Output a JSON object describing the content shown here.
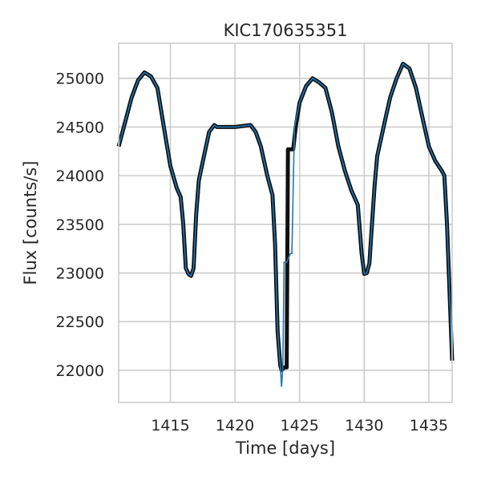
{
  "chart_data": {
    "type": "line",
    "title": "KIC170635351",
    "xlabel": "Time [days]",
    "ylabel": "Flux [counts/s]",
    "xlim": [
      1411,
      1436.8
    ],
    "ylim": [
      21670,
      25360
    ],
    "xticks": [
      1415,
      1420,
      1425,
      1430,
      1435
    ],
    "yticks": [
      22000,
      22500,
      23000,
      23500,
      24000,
      24500,
      25000
    ],
    "grid": true,
    "legend": "none",
    "colors": {
      "raw": "#111111",
      "model": "#1f77b4",
      "grid": "#cccccc",
      "frame": "#cccccc"
    },
    "series": [
      {
        "role": "raw",
        "x": [
          1411.0,
          1411.5,
          1412.0,
          1412.5,
          1413.0,
          1413.5,
          1414.0,
          1414.5,
          1415.0,
          1415.5,
          1415.8,
          1416.0,
          1416.2,
          1416.4,
          1416.6,
          1416.8,
          1417.0,
          1417.2,
          1417.6,
          1418.0,
          1418.4,
          1418.6,
          1420.0,
          1421.2,
          1421.6,
          1422.0,
          1422.5,
          1422.9,
          1423.1,
          1423.3,
          1423.5,
          1423.6,
          1423.8,
          1424.0,
          1424.1,
          1424.3,
          1424.5,
          1424.7,
          1425.0,
          1425.5,
          1426.0,
          1426.5,
          1427.0,
          1427.5,
          1428.0,
          1428.5,
          1429.0,
          1429.5,
          1429.8,
          1430.0,
          1430.2,
          1430.4,
          1430.6,
          1430.8,
          1431.0,
          1431.5,
          1432.0,
          1432.5,
          1433.0,
          1433.5,
          1434.0,
          1434.5,
          1435.0,
          1435.5,
          1436.0,
          1436.2,
          1436.4,
          1436.6,
          1436.8
        ],
        "y": [
          24300,
          24550,
          24800,
          24980,
          25060,
          25020,
          24900,
          24500,
          24100,
          23870,
          23780,
          23500,
          23050,
          22990,
          22970,
          23050,
          23600,
          23950,
          24200,
          24450,
          24520,
          24500,
          24500,
          24520,
          24450,
          24300,
          24000,
          23800,
          23300,
          22400,
          22050,
          22000,
          22030,
          22030,
          24270,
          24270,
          24270,
          24500,
          24750,
          24920,
          25000,
          24960,
          24900,
          24650,
          24300,
          24050,
          23850,
          23700,
          23200,
          22990,
          23000,
          23100,
          23500,
          23900,
          24200,
          24500,
          24800,
          25000,
          25150,
          25100,
          24900,
          24600,
          24300,
          24150,
          24050,
          24000,
          23500,
          22800,
          22100
        ]
      },
      {
        "role": "model",
        "x": [
          1411.0,
          1411.5,
          1412.0,
          1412.5,
          1413.0,
          1413.5,
          1414.0,
          1414.5,
          1415.0,
          1415.5,
          1415.8,
          1416.0,
          1416.2,
          1416.4,
          1416.6,
          1416.8,
          1417.0,
          1417.2,
          1417.6,
          1418.0,
          1418.4,
          1418.6,
          1420.0,
          1421.2,
          1421.6,
          1422.0,
          1422.5,
          1422.9,
          1423.1,
          1423.3,
          1423.5,
          1423.6,
          1423.7,
          1423.8,
          1423.9,
          1424.0,
          1424.3,
          1424.4,
          1424.6,
          1425.0,
          1425.5,
          1426.0,
          1426.5,
          1427.0,
          1427.5,
          1428.0,
          1428.5,
          1429.0,
          1429.5,
          1429.8,
          1430.0,
          1430.2,
          1430.4,
          1430.6,
          1430.8,
          1431.0,
          1431.5,
          1432.0,
          1432.5,
          1433.0,
          1433.5,
          1434.0,
          1434.5,
          1435.0,
          1435.5,
          1436.0,
          1436.2,
          1436.4,
          1436.6,
          1436.8
        ],
        "y": [
          24300,
          24550,
          24800,
          24980,
          25060,
          25020,
          24900,
          24500,
          24100,
          23870,
          23780,
          23500,
          23050,
          22990,
          22970,
          23050,
          23600,
          23950,
          24200,
          24450,
          24520,
          24500,
          24500,
          24520,
          24450,
          24300,
          24000,
          23800,
          23300,
          22400,
          22050,
          21830,
          22030,
          23110,
          23110,
          23110,
          23200,
          23200,
          24500,
          24750,
          24920,
          25000,
          24960,
          24900,
          24650,
          24300,
          24050,
          23850,
          23700,
          23200,
          22990,
          23000,
          23100,
          23500,
          23900,
          24200,
          24500,
          24800,
          25000,
          25150,
          25100,
          24900,
          24600,
          24300,
          24150,
          24050,
          24000,
          23500,
          22800,
          22100
        ]
      }
    ]
  }
}
